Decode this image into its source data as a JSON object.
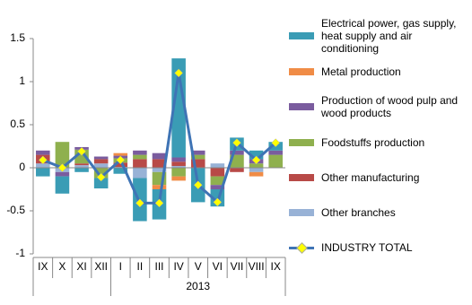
{
  "chart_data": {
    "type": "bar",
    "categories": [
      "IX",
      "X",
      "XI",
      "XII",
      "I",
      "II",
      "III",
      "IV",
      "V",
      "VI",
      "VII",
      "VIII",
      "IX"
    ],
    "group_label": "2013",
    "ylim": [
      -1,
      1.5
    ],
    "yticks": [
      -1,
      -0.5,
      0,
      0.5,
      1,
      1.5
    ],
    "series": [
      {
        "name": "Electrical power, gas supply, heat supply and air conditioning",
        "color": "#3a9cb5",
        "values": [
          -0.1,
          -0.2,
          -0.05,
          -0.12,
          -0.07,
          -0.5,
          -0.35,
          1.15,
          -0.4,
          -0.2,
          0.15,
          0.1,
          0.1
        ]
      },
      {
        "name": "Metal production",
        "color": "#f08c46",
        "values": [
          0,
          0,
          0,
          0,
          0.03,
          0,
          -0.05,
          -0.05,
          0,
          0,
          0,
          -0.05,
          0
        ]
      },
      {
        "name": "Production of wood pulp and wood products",
        "color": "#7a5c9e",
        "values": [
          0.05,
          -0.05,
          0.03,
          0.03,
          0.03,
          0.05,
          0.07,
          0.05,
          0.05,
          -0.05,
          0.05,
          0.05,
          0.05
        ]
      },
      {
        "name": "Foodstuffs production",
        "color": "#8fb04e",
        "values": [
          0,
          0.3,
          0.16,
          -0.12,
          0.05,
          0.05,
          -0.15,
          -0.1,
          0.05,
          -0.1,
          0.15,
          0.05,
          0.15
        ]
      },
      {
        "name": "Other manufacturing",
        "color": "#b84a47",
        "values": [
          0.1,
          0,
          0.02,
          0.05,
          0.05,
          0.1,
          0.1,
          0.05,
          0.1,
          -0.1,
          -0.05,
          0,
          0
        ]
      },
      {
        "name": "Other branches",
        "color": "#98b2d6",
        "values": [
          0.05,
          -0.05,
          0.03,
          0.05,
          0.01,
          -0.12,
          -0.05,
          0.02,
          0,
          0.05,
          0,
          -0.05,
          0
        ]
      },
      {
        "name": "INDUSTRY TOTAL",
        "type": "line",
        "color": "#3f74b5",
        "marker_color": "#ffff00",
        "values": [
          0.09,
          0,
          0.19,
          -0.11,
          0.09,
          -0.41,
          -0.41,
          1.1,
          -0.2,
          -0.4,
          0.29,
          0.09,
          0.29
        ]
      }
    ]
  }
}
